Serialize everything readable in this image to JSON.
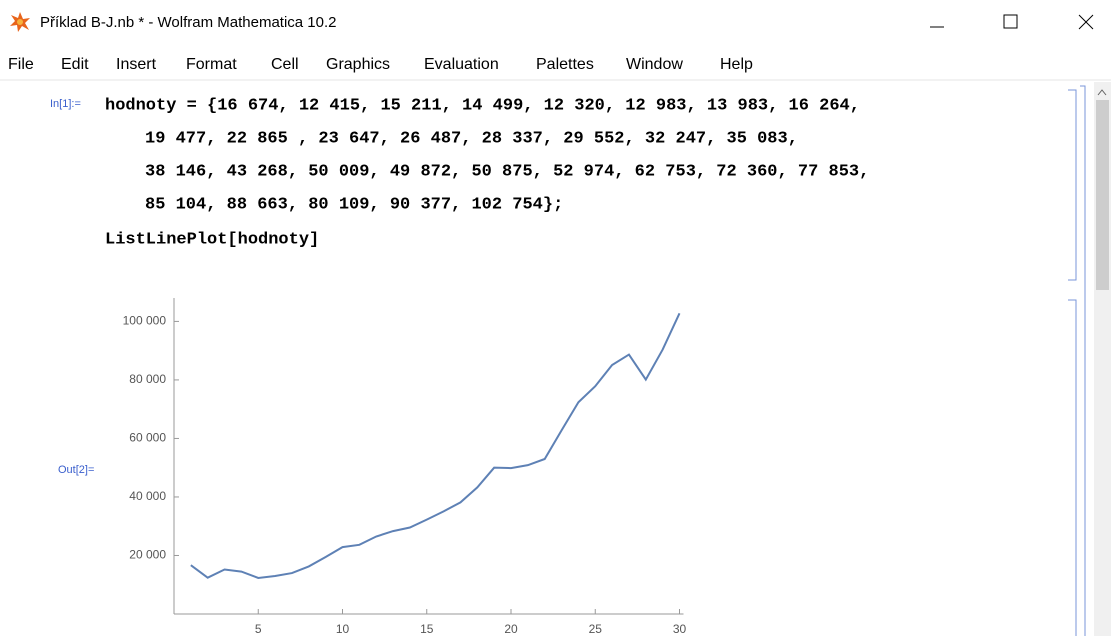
{
  "window": {
    "title": "Příklad B-J.nb * - Wolfram Mathematica 10.2"
  },
  "menu": [
    "File",
    "Edit",
    "Insert",
    "Format",
    "Cell",
    "Graphics",
    "Evaluation",
    "Palettes",
    "Window",
    "Help"
  ],
  "input": {
    "label": "In[1]:=",
    "lines": [
      "hodnoty = {16 674, 12 415, 15 211, 14 499, 12 320, 12 983, 13 983, 16 264,",
      "19 477, 22 865 , 23 647, 26 487, 28 337, 29 552, 32 247, 35 083,",
      "38 146, 43 268, 50 009, 49 872, 50 875, 52 974, 62 753, 72 360, 77 853,",
      "85 104, 88 663, 80 109, 90 377, 102 754};",
      "ListLinePlot[hodnoty]"
    ]
  },
  "output": {
    "label": "Out[2]="
  },
  "chart_data": {
    "type": "line",
    "x": [
      1,
      2,
      3,
      4,
      5,
      6,
      7,
      8,
      9,
      10,
      11,
      12,
      13,
      14,
      15,
      16,
      17,
      18,
      19,
      20,
      21,
      22,
      23,
      24,
      25,
      26,
      27,
      28,
      29,
      30
    ],
    "series": [
      {
        "color": "#5e81b5",
        "values": [
          16674,
          12415,
          15211,
          14499,
          12320,
          12983,
          13983,
          16264,
          19477,
          22865,
          23647,
          26487,
          28337,
          29552,
          32247,
          35083,
          38146,
          43268,
          50009,
          49872,
          50875,
          52974,
          62753,
          72360,
          77853,
          85104,
          88663,
          80109,
          90377,
          102754
        ]
      }
    ],
    "xlim": [
      0,
      30
    ],
    "xticks": [
      5,
      10,
      15,
      20,
      25,
      30
    ],
    "ylim": [
      0,
      108000
    ],
    "yticks": [
      {
        "value": 20000,
        "label": "20 000"
      },
      {
        "value": 40000,
        "label": "40 000"
      },
      {
        "value": 60000,
        "label": "60 000"
      },
      {
        "value": 80000,
        "label": "80 000"
      },
      {
        "value": 100000,
        "label": "100 000"
      }
    ]
  }
}
